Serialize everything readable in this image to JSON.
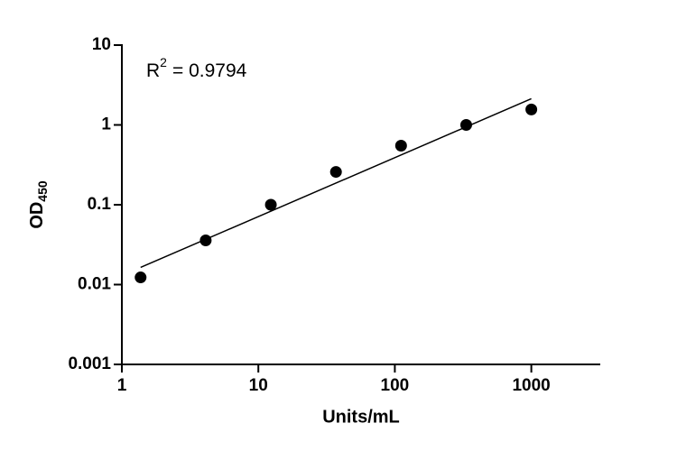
{
  "chart_data": {
    "type": "scatter",
    "x_label": "Units/mL",
    "y_label": {
      "base": "OD",
      "sub": "450"
    },
    "annotation": {
      "base": "R",
      "sup": "2",
      "text": "=  0.9794"
    },
    "series": [
      {
        "color": "#000000",
        "x": [
          1.372,
          4.115,
          12.35,
          37.04,
          111.1,
          333.3,
          1000
        ],
        "values": [
          0.0123,
          0.0358,
          0.1,
          0.258,
          0.55,
          1.0,
          1.56
        ]
      }
    ],
    "fit": {
      "color": "#000000",
      "x": [
        1.372,
        1000
      ],
      "values": [
        0.0164,
        2.13
      ]
    },
    "xlim": [
      1,
      3200
    ],
    "ylim": [
      0.001,
      10
    ],
    "xticks": [
      1,
      10,
      100,
      1000
    ],
    "yticks": [
      0.001,
      0.01,
      0.1,
      1,
      10
    ],
    "xscale": "log",
    "yscale": "log",
    "grid": false
  }
}
